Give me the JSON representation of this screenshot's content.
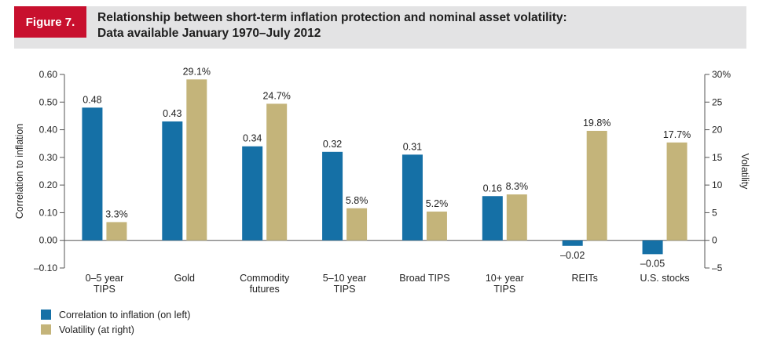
{
  "figure_label": "Figure 7.",
  "title_line1": "Relationship between short-term inflation protection and nominal asset volatility:",
  "title_line2": "Data available January 1970–July 2012",
  "colors": {
    "correlation": "#1570a6",
    "volatility": "#c4b47a",
    "accent": "#c8102e"
  },
  "chart_data": {
    "type": "bar",
    "title": "Relationship between short-term inflation protection and nominal asset volatility: Data available January 1970–July 2012",
    "categories": [
      [
        "0–5 year",
        "TIPS"
      ],
      [
        "Gold"
      ],
      [
        "Commodity",
        "futures"
      ],
      [
        "5–10 year",
        "TIPS"
      ],
      [
        "Broad TIPS"
      ],
      [
        "10+ year",
        "TIPS"
      ],
      [
        "REITs"
      ],
      [
        "U.S. stocks"
      ]
    ],
    "series": [
      {
        "name": "Correlation to inflation (on left)",
        "axis": "left",
        "values": [
          0.48,
          0.43,
          0.34,
          0.32,
          0.31,
          0.16,
          -0.02,
          -0.05
        ],
        "labels": [
          "0.48",
          "0.43",
          "0.34",
          "0.32",
          "0.31",
          "0.16",
          "–0.02",
          "–0.05"
        ]
      },
      {
        "name": "Volatility (at right)",
        "axis": "right",
        "values": [
          3.3,
          29.1,
          24.7,
          5.8,
          5.2,
          8.3,
          19.8,
          17.7
        ],
        "labels": [
          "3.3%",
          "29.1%",
          "24.7%",
          "5.8%",
          "5.2%",
          "8.3%",
          "19.8%",
          "17.7%"
        ]
      }
    ],
    "ylabel": "Correlation to inflation",
    "ylabel_right": "Volatility",
    "ylim": [
      -0.1,
      0.6
    ],
    "yticks": [
      "–0.10",
      "0.00",
      "0.10",
      "0.20",
      "0.30",
      "0.40",
      "0.50",
      "0.60"
    ],
    "ylim_right": [
      -5,
      30
    ],
    "yticks_right": [
      "–5",
      "0",
      "5",
      "10",
      "15",
      "20",
      "25",
      "30%"
    ],
    "grid": false,
    "legend_position": "bottom-left"
  }
}
